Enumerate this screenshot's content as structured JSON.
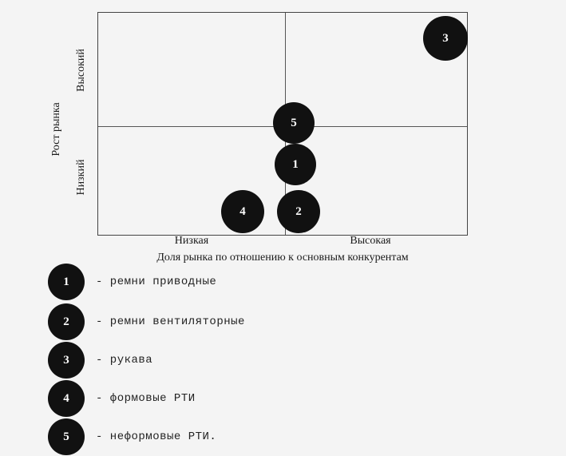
{
  "axes": {
    "y_title": "Рост рынка",
    "y_high": "Высокий",
    "y_low": "Низкий",
    "x_low": "Низкая",
    "x_high": "Высокая",
    "x_title": "Доля рынка по отношению к основным конкурентам"
  },
  "bubbles": [
    {
      "label": "1"
    },
    {
      "label": "2"
    },
    {
      "label": "3"
    },
    {
      "label": "4"
    },
    {
      "label": "5"
    }
  ],
  "legend": [
    {
      "num": "1",
      "text": "- ремни приводные"
    },
    {
      "num": "2",
      "text": "- ремни вентиляторные"
    },
    {
      "num": "3",
      "text": "- рукава"
    },
    {
      "num": "4",
      "text": "- формовые РТИ"
    },
    {
      "num": "5",
      "text": "- неформовые РТИ."
    }
  ],
  "colors": {
    "bubble": "#111111",
    "background": "#f4f4f4"
  }
}
